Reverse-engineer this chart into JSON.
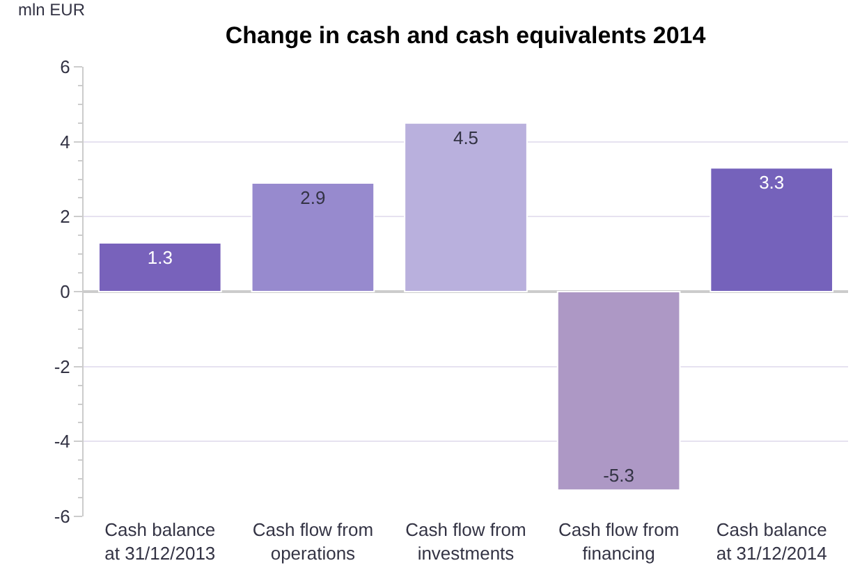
{
  "chart_data": {
    "type": "bar",
    "title": "Change in cash and cash equivalents 2014",
    "ylabel": "mln EUR",
    "categories": [
      "Cash balance\nat 31/12/2013",
      "Cash flow from\noperations",
      "Cash flow from\ninvestments",
      "Cash flow from\nfinancing",
      "Cash balance\nat 31/12/2014"
    ],
    "values": [
      1.3,
      2.9,
      4.5,
      -5.3,
      3.3
    ],
    "colors": [
      "#7862bb",
      "#978ace",
      "#b9b0dd",
      "#ad98c5",
      "#7562bb"
    ],
    "ylim": [
      -6,
      6
    ],
    "yticks": [
      -6,
      -4,
      -2,
      0,
      2,
      4,
      6
    ],
    "grid": true,
    "data_labels": true
  }
}
